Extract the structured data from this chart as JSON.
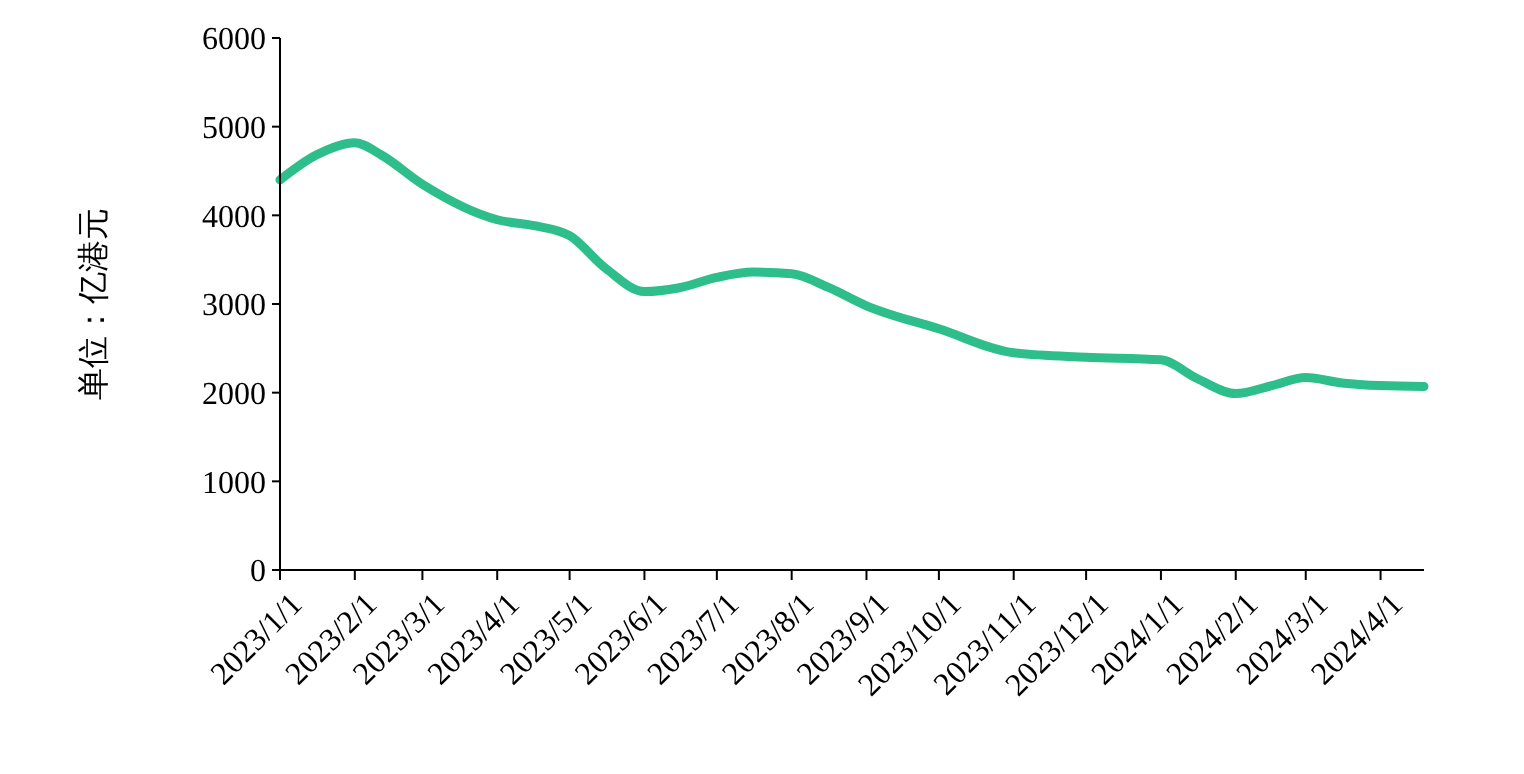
{
  "chart_data": {
    "type": "line",
    "ylabel": "单位：亿港元",
    "xlim": [
      "2023-01-01",
      "2024-04-19"
    ],
    "ylim": [
      0,
      6000
    ],
    "yticks": [
      0,
      1000,
      2000,
      3000,
      4000,
      5000,
      6000
    ],
    "xticks": [
      {
        "value": "2023-01-01",
        "label": "2023/1/1"
      },
      {
        "value": "2023-02-01",
        "label": "2023/2/1"
      },
      {
        "value": "2023-03-01",
        "label": "2023/3/1"
      },
      {
        "value": "2023-04-01",
        "label": "2023/4/1"
      },
      {
        "value": "2023-05-01",
        "label": "2023/5/1"
      },
      {
        "value": "2023-06-01",
        "label": "2023/6/1"
      },
      {
        "value": "2023-07-01",
        "label": "2023/7/1"
      },
      {
        "value": "2023-08-01",
        "label": "2023/8/1"
      },
      {
        "value": "2023-09-01",
        "label": "2023/9/1"
      },
      {
        "value": "2023-10-01",
        "label": "2023/10/1"
      },
      {
        "value": "2023-11-01",
        "label": "2023/11/1"
      },
      {
        "value": "2023-12-01",
        "label": "2023/12/1"
      },
      {
        "value": "2024-01-01",
        "label": "2024/1/1"
      },
      {
        "value": "2024-02-01",
        "label": "2024/2/1"
      },
      {
        "value": "2024-03-01",
        "label": "2024/3/1"
      },
      {
        "value": "2024-04-01",
        "label": "2024/4/1"
      }
    ],
    "x": [
      "2023-01-01",
      "2023-01-16",
      "2023-02-01",
      "2023-02-12",
      "2023-03-01",
      "2023-04-01",
      "2023-04-17",
      "2023-05-01",
      "2023-05-16",
      "2023-06-01",
      "2023-06-15",
      "2023-07-01",
      "2023-07-16",
      "2023-08-01",
      "2023-08-16",
      "2023-09-01",
      "2023-10-01",
      "2023-11-01",
      "2023-12-01",
      "2024-01-01",
      "2024-01-16",
      "2024-02-01",
      "2024-02-16",
      "2024-03-01",
      "2024-03-16",
      "2024-04-01",
      "2024-04-19"
    ],
    "series": [
      {
        "color": "#2dbe8c",
        "values": [
          4400,
          4680,
          4820,
          4680,
          4350,
          3950,
          3880,
          3770,
          3400,
          3140,
          3180,
          3300,
          3360,
          3340,
          3190,
          2980,
          2720,
          2450,
          2400,
          2370,
          2160,
          1990,
          2080,
          2170,
          2110,
          2080,
          2070
        ]
      }
    ],
    "line_style": "solid"
  }
}
